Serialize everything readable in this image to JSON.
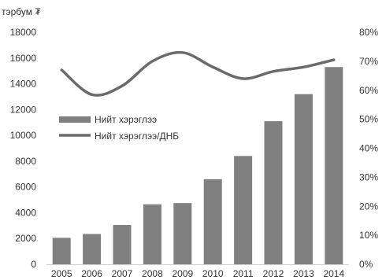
{
  "chart_data": {
    "type": "bar",
    "unit_label": "тэрбум ₮",
    "categories": [
      "2005",
      "2006",
      "2007",
      "2008",
      "2009",
      "2010",
      "2011",
      "2012",
      "2013",
      "2014"
    ],
    "series": [
      {
        "name": "Нийт хэрэглээ",
        "type": "bar",
        "axis": "left",
        "color": "#808080",
        "values": [
          2050,
          2350,
          3050,
          4650,
          4750,
          6600,
          8400,
          11100,
          13200,
          15300
        ]
      },
      {
        "name": "Нийт хэрэглээ/ДНБ",
        "type": "line",
        "axis": "right",
        "color": "#6b6b6b",
        "values": [
          67,
          58.5,
          61.5,
          70,
          73,
          68,
          64,
          66.5,
          68,
          70.5
        ]
      }
    ],
    "y_left": {
      "min": 0,
      "max": 18000,
      "ticks": [
        0,
        2000,
        4000,
        6000,
        8000,
        10000,
        12000,
        14000,
        16000,
        18000
      ]
    },
    "y_right": {
      "min": 0,
      "max": 80,
      "ticks": [
        "0%",
        "10%",
        "20%",
        "30%",
        "40%",
        "50%",
        "60%",
        "70%",
        "80%"
      ]
    },
    "legend_position": "left-middle",
    "grid": false
  }
}
